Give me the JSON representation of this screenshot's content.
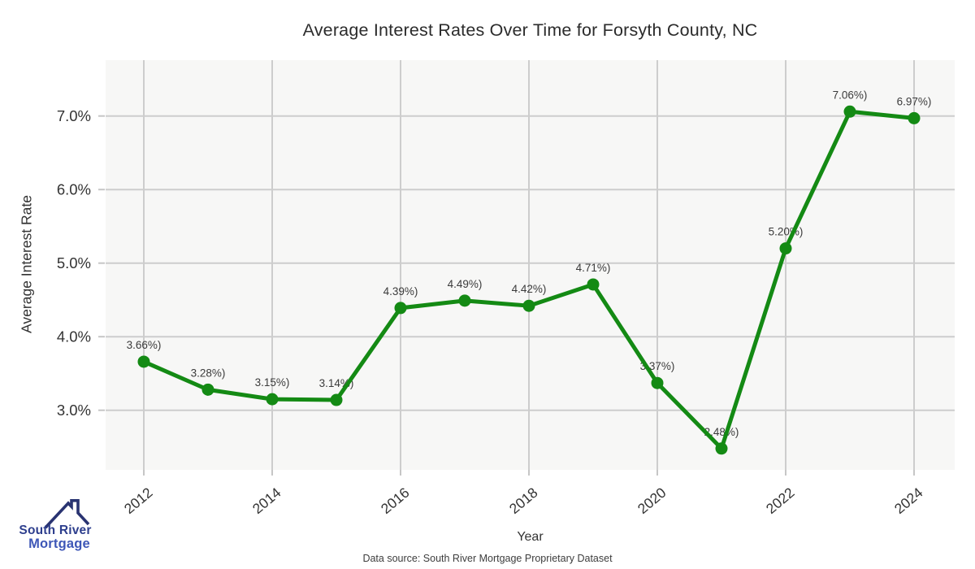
{
  "header": {
    "title": "Average Interest Rates Over Time for Forsyth County, NC"
  },
  "chart_data": {
    "type": "line",
    "title": "Average Interest Rates Over Time for Forsyth County, NC",
    "xlabel": "Year",
    "ylabel": "Average Interest Rate",
    "x": [
      2012,
      2013,
      2014,
      2015,
      2016,
      2017,
      2018,
      2019,
      2020,
      2021,
      2022,
      2023,
      2024
    ],
    "series": [
      {
        "name": "Average Interest Rate",
        "values": [
          3.66,
          3.28,
          3.15,
          3.14,
          4.39,
          4.49,
          4.42,
          4.71,
          3.37,
          2.48,
          5.2,
          7.06,
          6.97
        ]
      }
    ],
    "point_labels": [
      "3.66%)",
      "3.28%)",
      "3.15%)",
      "3.14%)",
      "4.39%)",
      "4.49%)",
      "4.42%)",
      "4.71%)",
      "3.37%)",
      "2.48%)",
      "5.20%)",
      "7.06%)",
      "6.97%)"
    ],
    "x_tick_years": [
      2012,
      2014,
      2016,
      2018,
      2020,
      2022,
      2024
    ],
    "x_tick_labels": [
      "2012",
      "2014",
      "2016",
      "2018",
      "2020",
      "2022",
      "2024"
    ],
    "y_tick_values": [
      3,
      4,
      5,
      6,
      7
    ],
    "y_tick_labels": [
      "3.0%",
      "4.0%",
      "5.0%",
      "6.0%",
      "7.0%"
    ],
    "ylim": [
      2.2,
      7.8
    ],
    "grid": true,
    "legend": "none",
    "line_color": "#148a14",
    "marker_color": "#148a14",
    "plot_bg": "#f7f7f6",
    "grid_color": "#cdcdcd",
    "tick_color": "#c6c6c6",
    "tick_label_color": "#333333",
    "point_label_color": "#3b3b3b"
  },
  "footer": {
    "source": "Data source: South River Mortgage Proprietary Dataset"
  },
  "logo": {
    "line1": "South River",
    "line2": "Mortgage",
    "roof_color": "#293371",
    "line1_color": "#2d3e8d",
    "line2_color": "#3e57b7"
  }
}
